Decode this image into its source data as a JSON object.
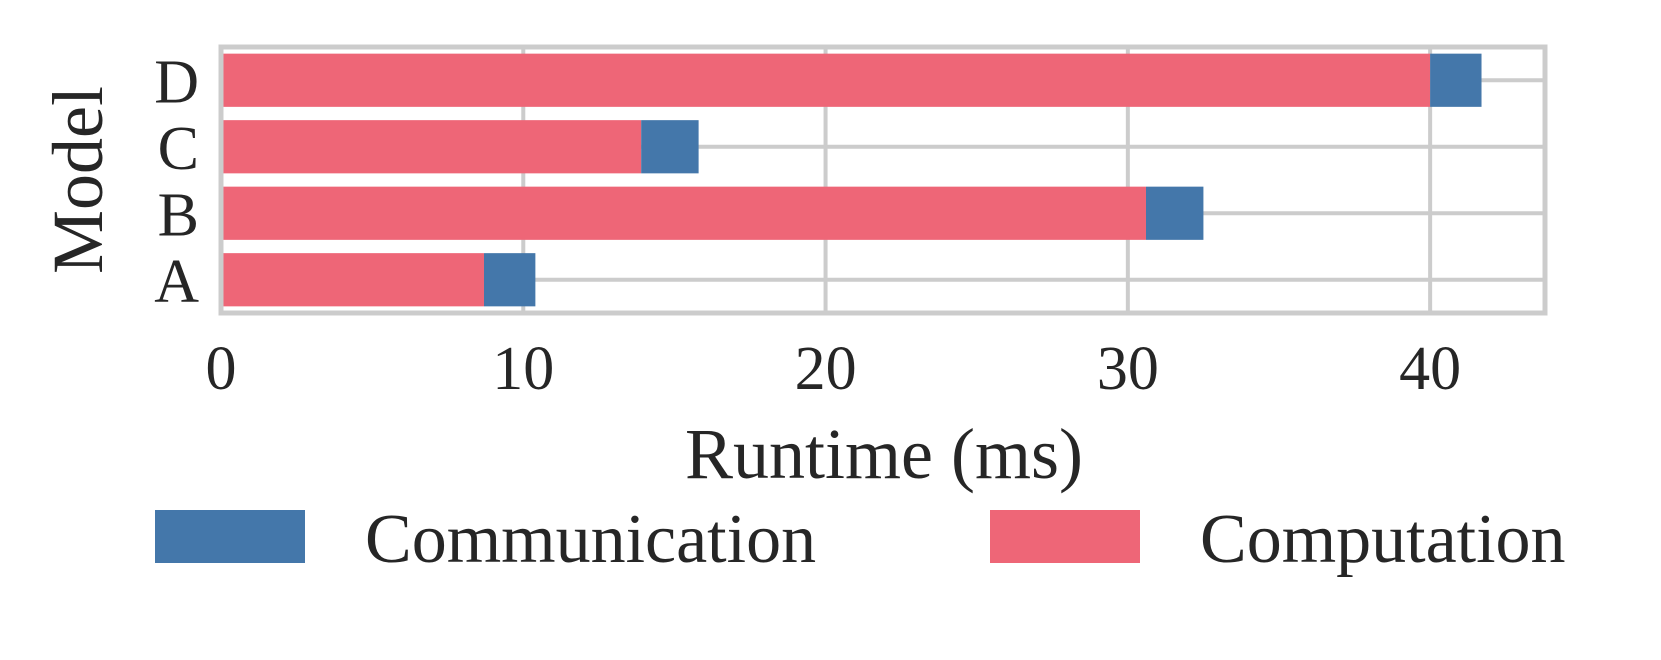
{
  "chart_data": {
    "type": "bar",
    "orientation": "horizontal",
    "stacked": true,
    "categories": [
      "A",
      "B",
      "C",
      "D"
    ],
    "series": [
      {
        "name": "Computation",
        "color": "#EE6677",
        "values": [
          8.7,
          30.6,
          13.9,
          40.0
        ]
      },
      {
        "name": "Communication",
        "color": "#4477AA",
        "values": [
          1.7,
          1.9,
          1.9,
          1.7
        ]
      }
    ],
    "xlabel": "Runtime (ms)",
    "ylabel": "Model",
    "xlim": [
      0,
      43.8
    ],
    "xticks": [
      0,
      10,
      20,
      30,
      40
    ],
    "grid": true,
    "legend": {
      "placement": "bottom",
      "entries": [
        {
          "label": "Communication",
          "color": "#4477AA"
        },
        {
          "label": "Computation",
          "color": "#EE6677"
        }
      ]
    }
  }
}
